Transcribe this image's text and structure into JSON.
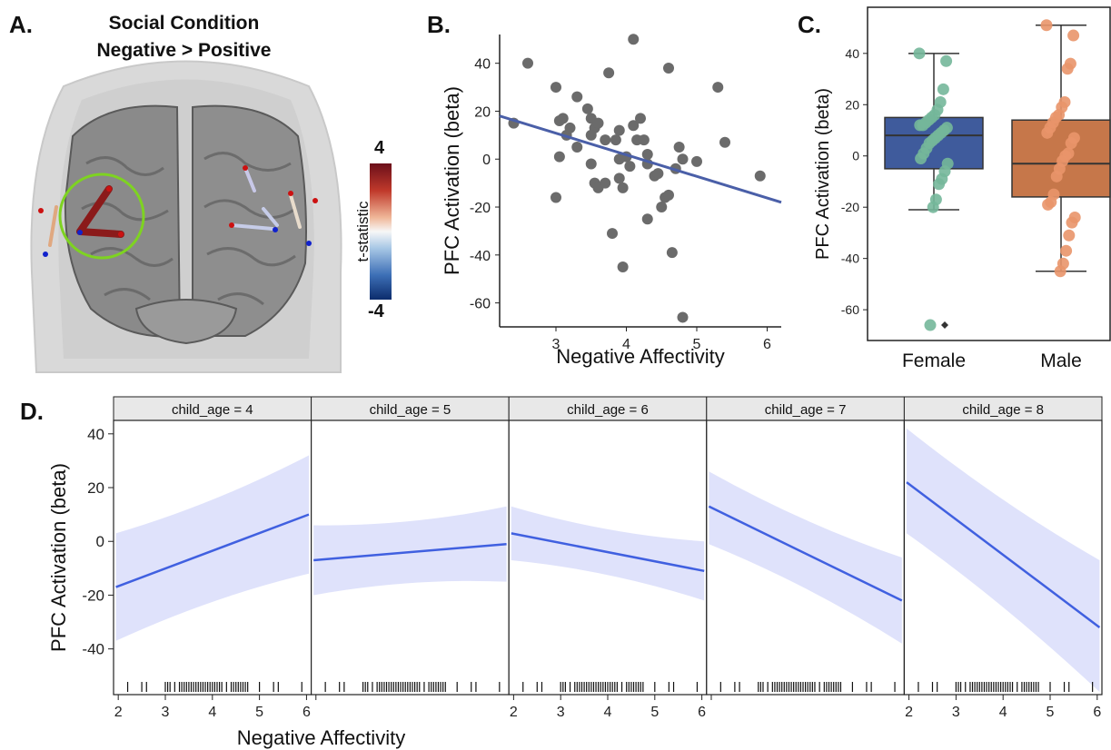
{
  "panelA": {
    "label": "A.",
    "title_line1": "Social Condition",
    "title_line2": "Negative > Positive",
    "colorbar": {
      "label": "t-statistic",
      "max_label": "4",
      "min_label": "-4"
    }
  },
  "panelB": {
    "label": "B."
  },
  "panelC": {
    "label": "C."
  },
  "panelD": {
    "label": "D."
  },
  "chart_data": [
    {
      "id": "B",
      "type": "scatter",
      "xlabel": "Negative Affectivity",
      "ylabel": "PFC Activation (beta)",
      "xlim": [
        2.2,
        6.2
      ],
      "ylim": [
        -70,
        52
      ],
      "xticks": [
        3,
        4,
        5,
        6
      ],
      "yticks": [
        -60,
        -40,
        -20,
        0,
        20,
        40
      ],
      "points": [
        [
          2.4,
          15
        ],
        [
          2.6,
          40
        ],
        [
          3.0,
          30
        ],
        [
          3.05,
          16
        ],
        [
          3.05,
          1
        ],
        [
          3.0,
          -16
        ],
        [
          3.1,
          17
        ],
        [
          3.15,
          10
        ],
        [
          3.2,
          13
        ],
        [
          3.3,
          26
        ],
        [
          3.45,
          21
        ],
        [
          3.5,
          17
        ],
        [
          3.55,
          13
        ],
        [
          3.5,
          10
        ],
        [
          3.6,
          15
        ],
        [
          3.5,
          -2
        ],
        [
          3.55,
          -10
        ],
        [
          3.6,
          -12
        ],
        [
          3.7,
          8
        ],
        [
          3.7,
          -10
        ],
        [
          3.75,
          36
        ],
        [
          3.8,
          -31
        ],
        [
          3.85,
          8
        ],
        [
          3.9,
          12
        ],
        [
          3.9,
          0
        ],
        [
          3.9,
          -8
        ],
        [
          3.95,
          -12
        ],
        [
          3.95,
          -45
        ],
        [
          4.0,
          1
        ],
        [
          4.05,
          -3
        ],
        [
          4.1,
          50
        ],
        [
          4.1,
          14
        ],
        [
          4.15,
          8
        ],
        [
          4.2,
          17
        ],
        [
          4.25,
          8
        ],
        [
          4.3,
          2
        ],
        [
          4.3,
          -2
        ],
        [
          4.3,
          -25
        ],
        [
          4.4,
          -7
        ],
        [
          4.45,
          -6
        ],
        [
          4.5,
          -20
        ],
        [
          4.55,
          -16
        ],
        [
          4.6,
          38
        ],
        [
          4.6,
          -15
        ],
        [
          4.65,
          -39
        ],
        [
          4.7,
          -4
        ],
        [
          4.75,
          5
        ],
        [
          4.8,
          0
        ],
        [
          4.8,
          -66
        ],
        [
          5.0,
          -1
        ],
        [
          5.3,
          30
        ],
        [
          5.4,
          7
        ],
        [
          5.9,
          -7
        ],
        [
          3.3,
          5
        ]
      ],
      "fit_line": {
        "x": [
          2.2,
          6.2
        ],
        "y": [
          18,
          -18
        ]
      }
    },
    {
      "id": "C",
      "type": "box",
      "ylabel": "PFC Activation (beta)",
      "ylim": [
        -72,
        58
      ],
      "yticks": [
        -60,
        -40,
        -20,
        0,
        20,
        40
      ],
      "categories": [
        "Female",
        "Male"
      ],
      "boxes": [
        {
          "name": "Female",
          "q1": -5,
          "median": 8,
          "q3": 15,
          "whisker_low": -21,
          "whisker_high": 40,
          "outliers": [
            -66
          ],
          "points": [
            40,
            37,
            26,
            21,
            18,
            16,
            15,
            14,
            13,
            12,
            12,
            11,
            10,
            9,
            8,
            7,
            6,
            5,
            3,
            1,
            -1,
            -3,
            -6,
            -9,
            -11,
            -17,
            -20,
            -66
          ]
        },
        {
          "name": "Male",
          "q1": -16,
          "median": -3,
          "q3": 14,
          "whisker_low": -45,
          "whisker_high": 51,
          "outliers": [],
          "points": [
            51,
            47,
            36,
            34,
            21,
            19,
            16,
            15,
            13,
            11,
            9,
            7,
            5,
            1,
            0,
            -2,
            -5,
            -8,
            -15,
            -18,
            -19,
            -24,
            -26,
            -31,
            -37,
            -42,
            -45
          ]
        }
      ]
    },
    {
      "id": "D",
      "type": "line",
      "xlabel": "Negative Affectivity",
      "ylabel": "PFC Activation (beta)",
      "xlim": [
        1.9,
        6.1
      ],
      "ylim": [
        -57,
        45
      ],
      "xticks": [
        2,
        3,
        4,
        5,
        6
      ],
      "yticks": [
        -40,
        -20,
        0,
        20,
        40
      ],
      "facets": [
        {
          "label": "child_age = 4",
          "line": [
            -17,
            10
          ],
          "ci_low": [
            -37,
            -12
          ],
          "ci_high": [
            3,
            32
          ],
          "rug": [
            2.2,
            2.5,
            2.6,
            3.0,
            3.05,
            3.1,
            3.2,
            3.3,
            3.35,
            3.4,
            3.45,
            3.5,
            3.55,
            3.6,
            3.65,
            3.7,
            3.75,
            3.8,
            3.85,
            3.9,
            3.95,
            4.0,
            4.05,
            4.1,
            4.15,
            4.2,
            4.3,
            4.4,
            4.45,
            4.5,
            4.55,
            4.6,
            4.65,
            4.7,
            4.75,
            5.0,
            5.3,
            5.4,
            5.9
          ]
        },
        {
          "label": "child_age = 5",
          "line": [
            -7,
            -1
          ],
          "ci_low": [
            -20,
            -15
          ],
          "ci_high": [
            6,
            13
          ],
          "rug": [
            2.2,
            2.5,
            2.6,
            3.0,
            3.05,
            3.1,
            3.2,
            3.3,
            3.35,
            3.4,
            3.45,
            3.5,
            3.55,
            3.6,
            3.65,
            3.7,
            3.75,
            3.8,
            3.85,
            3.9,
            3.95,
            4.0,
            4.05,
            4.1,
            4.15,
            4.2,
            4.3,
            4.4,
            4.45,
            4.5,
            4.55,
            4.6,
            4.65,
            4.7,
            4.75,
            5.0,
            5.3,
            5.4,
            5.9
          ]
        },
        {
          "label": "child_age = 6",
          "line": [
            3,
            -11
          ],
          "ci_low": [
            -7,
            -22
          ],
          "ci_high": [
            13,
            0
          ],
          "rug": [
            2.2,
            2.5,
            2.6,
            3.0,
            3.05,
            3.1,
            3.2,
            3.3,
            3.35,
            3.4,
            3.45,
            3.5,
            3.55,
            3.6,
            3.65,
            3.7,
            3.75,
            3.8,
            3.85,
            3.9,
            3.95,
            4.0,
            4.05,
            4.1,
            4.15,
            4.2,
            4.3,
            4.4,
            4.45,
            4.5,
            4.55,
            4.6,
            4.65,
            4.7,
            4.75,
            5.0,
            5.3,
            5.4,
            5.9
          ]
        },
        {
          "label": "child_age = 7",
          "line": [
            13,
            -22
          ],
          "ci_low": [
            -1,
            -38
          ],
          "ci_high": [
            26,
            -6
          ],
          "rug": [
            2.2,
            2.5,
            2.6,
            3.0,
            3.05,
            3.1,
            3.2,
            3.3,
            3.35,
            3.4,
            3.45,
            3.5,
            3.55,
            3.6,
            3.65,
            3.7,
            3.75,
            3.8,
            3.85,
            3.9,
            3.95,
            4.0,
            4.05,
            4.1,
            4.15,
            4.2,
            4.3,
            4.4,
            4.45,
            4.5,
            4.55,
            4.6,
            4.65,
            4.7,
            4.75,
            5.0,
            5.3,
            5.4,
            5.9
          ]
        },
        {
          "label": "child_age = 8",
          "line": [
            22,
            -32
          ],
          "ci_low": [
            3,
            -56
          ],
          "ci_high": [
            42,
            -7
          ],
          "rug": [
            2.2,
            2.5,
            2.6,
            3.0,
            3.05,
            3.1,
            3.2,
            3.3,
            3.35,
            3.4,
            3.45,
            3.5,
            3.55,
            3.6,
            3.65,
            3.7,
            3.75,
            3.8,
            3.85,
            3.9,
            3.95,
            4.0,
            4.05,
            4.1,
            4.15,
            4.2,
            4.3,
            4.4,
            4.45,
            4.5,
            4.55,
            4.6,
            4.65,
            4.7,
            4.75,
            5.0,
            5.3,
            5.4,
            5.9
          ]
        }
      ]
    }
  ],
  "colors": {
    "scatter_point": "#6b6b6b",
    "fit_line": "#4a5fa8",
    "female_box": "#3f5b9c",
    "female_point": "#74b79a",
    "male_box": "#c6774a",
    "male_point": "#e9956a",
    "facet_line": "#4060e0",
    "facet_ci": "#dfe2fb",
    "strip_bg": "#e8e8e8",
    "brain": "#8a8a8a",
    "roi_ring": "#7ed321",
    "roi_line": "#8b1a1a"
  }
}
